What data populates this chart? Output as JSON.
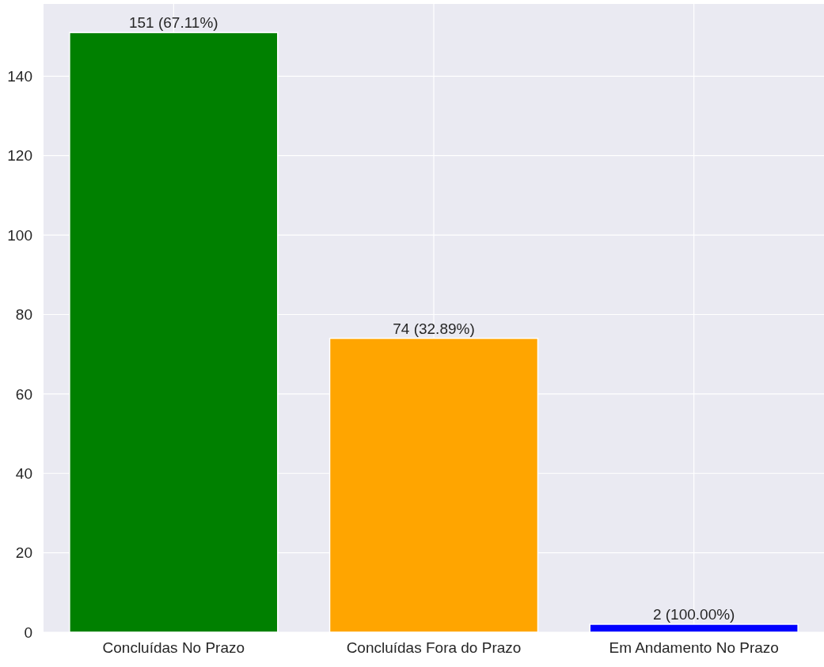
{
  "chart_data": {
    "type": "bar",
    "categories": [
      "Concluídas No Prazo",
      "Concluídas Fora do Prazo",
      "Em Andamento No Prazo"
    ],
    "values": [
      151,
      74,
      2
    ],
    "colors": [
      "#008000",
      "#ffa500",
      "#0000ff"
    ],
    "value_labels": [
      "151 (67.11%)",
      "74 (32.89%)",
      "2 (100.00%)"
    ],
    "ylim": [
      0,
      158.2
    ],
    "yticks": [
      0,
      20,
      40,
      60,
      80,
      100,
      120,
      140
    ],
    "grid": true
  }
}
